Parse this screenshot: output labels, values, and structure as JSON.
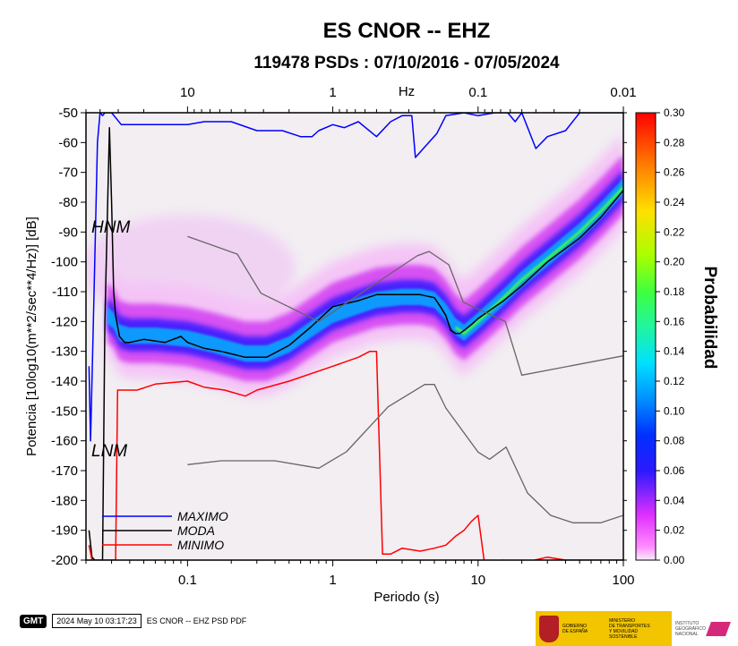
{
  "chart_data": {
    "type": "heatmap",
    "title": "ES CNOR -- EHZ",
    "subtitle": "119478 PSDs : 07/10/2016 - 07/05/2024",
    "xlabel": "Periodo (s)",
    "ylabel": "Potencia [10log10(m**2/sec**4/Hz)] [dB]",
    "top_axis_label": "Hz",
    "x_scale": "log",
    "xlim": [
      0.02,
      100
    ],
    "ylim": [
      -200,
      -50
    ],
    "x_ticks": [
      0.1,
      1,
      10,
      100
    ],
    "x_tick_labels": [
      "0.1",
      "1",
      "10",
      "100"
    ],
    "top_ticks": [
      10,
      1,
      0.1,
      0.01
    ],
    "top_tick_labels": [
      "10",
      "1",
      "0.1",
      "0.01"
    ],
    "y_ticks": [
      -50,
      -60,
      -70,
      -80,
      -90,
      -100,
      -110,
      -120,
      -130,
      -140,
      -150,
      -160,
      -170,
      -180,
      -190,
      -200
    ],
    "y_tick_labels": [
      "-50",
      "-60",
      "-70",
      "-80",
      "-90",
      "-100",
      "-110",
      "-120",
      "-130",
      "-140",
      "-150",
      "-160",
      "-170",
      "-180",
      "-190",
      "-200"
    ],
    "colorbar": {
      "label": "Probabilidad",
      "range": [
        0,
        0.3
      ],
      "ticks": [
        0,
        0.02,
        0.04,
        0.06,
        0.08,
        0.1,
        0.12,
        0.14,
        0.16,
        0.18,
        0.2,
        0.22,
        0.24,
        0.26,
        0.28,
        0.3
      ],
      "tick_labels": [
        "0.00",
        "0.02",
        "0.04",
        "0.06",
        "0.08",
        "0.10",
        "0.12",
        "0.14",
        "0.16",
        "0.18",
        "0.20",
        "0.22",
        "0.24",
        "0.26",
        "0.28",
        "0.30"
      ]
    },
    "annotations": {
      "hnm": "HNM",
      "lnm": "LNM"
    },
    "legend": {
      "placement": "bottom-left",
      "items": [
        {
          "label": "MAXIMO",
          "color": "#0000ff"
        },
        {
          "label": "MODA",
          "color": "#000000"
        },
        {
          "label": "MINIMO",
          "color": "#ff0000"
        }
      ]
    },
    "series": [
      {
        "name": "MAXIMO",
        "color": "#0000ff",
        "x": [
          0.021,
          0.0215,
          0.022,
          0.023,
          0.024,
          0.025,
          0.026,
          0.027,
          0.028,
          0.029,
          0.03,
          0.035,
          0.06,
          0.1,
          0.13,
          0.2,
          0.3,
          0.45,
          0.6,
          0.72,
          0.8,
          1,
          1.2,
          1.5,
          2,
          2.5,
          3,
          3.5,
          3.7,
          4.2,
          5.2,
          6,
          8,
          10,
          13,
          16,
          18,
          20,
          25,
          30,
          40,
          50,
          60,
          70,
          100
        ],
        "y": [
          -135,
          -160,
          -140,
          -100,
          -60,
          -50,
          -51,
          -50,
          -50,
          -50,
          -50,
          -54,
          -54,
          -54,
          -53,
          -53,
          -56,
          -56,
          -58,
          -58,
          -56,
          -54,
          -55,
          -53,
          -58,
          -53,
          -51,
          -51,
          -65,
          -62,
          -57,
          -51,
          -50,
          -51,
          -50,
          -50,
          -53,
          -50,
          -62,
          -58,
          -56,
          -50,
          -50,
          -50,
          -50
        ]
      },
      {
        "name": "MODA",
        "color": "#000000",
        "x": [
          0.021,
          0.022,
          0.023,
          0.025,
          0.026,
          0.027,
          0.029,
          0.03,
          0.031,
          0.032,
          0.034,
          0.037,
          0.04,
          0.05,
          0.07,
          0.09,
          0.1,
          0.13,
          0.17,
          0.25,
          0.35,
          0.5,
          0.7,
          1,
          1.5,
          2,
          3,
          4,
          5,
          5.5,
          6,
          6.5,
          7,
          7.5,
          8,
          9,
          10,
          15,
          20,
          30,
          50,
          70,
          100
        ],
        "y": [
          -190,
          -199,
          -200,
          -200,
          -200,
          -120,
          -55,
          -80,
          -110,
          -118,
          -125,
          -127,
          -127,
          -126,
          -127,
          -125,
          -127,
          -129,
          -130,
          -132,
          -132,
          -128,
          -122,
          -115,
          -113,
          -111,
          -111,
          -111,
          -112,
          -115,
          -118,
          -123,
          -124,
          -124,
          -123,
          -121,
          -119,
          -113,
          -108,
          -100,
          -92,
          -85,
          -76
        ]
      },
      {
        "name": "MINIMO",
        "color": "#ff0000",
        "x": [
          0.021,
          0.022,
          0.023,
          0.025,
          0.026,
          0.027,
          0.029,
          0.031,
          0.032,
          0.033,
          0.045,
          0.06,
          0.1,
          0.13,
          0.18,
          0.25,
          0.3,
          0.5,
          1,
          1.5,
          1.8,
          2,
          2.2,
          2.5,
          3,
          4,
          5,
          6,
          7,
          8,
          9,
          10,
          11,
          12,
          15,
          20,
          30,
          40,
          50,
          70,
          100
        ],
        "y": [
          -195,
          -200,
          -201,
          -201,
          -201,
          -200,
          -200,
          -200,
          -200,
          -143,
          -143,
          -141,
          -140,
          -142,
          -143,
          -145,
          -143,
          -140,
          -135,
          -132,
          -130,
          -130,
          -198,
          -198,
          -196,
          -197,
          -196,
          -195,
          -192,
          -190,
          -187,
          -185,
          -200,
          -201,
          -200,
          -201,
          -199,
          -200,
          -200,
          -200,
          -200
        ]
      },
      {
        "name": "HNM",
        "color": "#666666",
        "x": [
          0.1,
          0.22,
          0.32,
          0.8,
          3.8,
          4.6,
          6.3,
          7.9,
          15.4,
          20,
          100
        ],
        "y": [
          -91.5,
          -97.4,
          -110.5,
          -120,
          -98,
          -96.5,
          -101,
          -113.5,
          -120,
          -138,
          -131.5
        ]
      },
      {
        "name": "LNM",
        "color": "#666666",
        "x": [
          0.1,
          0.17,
          0.4,
          0.8,
          1.24,
          2.4,
          4.3,
          5,
          6,
          10,
          12,
          15.6,
          21.9,
          31.6,
          45,
          70,
          100
        ],
        "y": [
          -168,
          -166.7,
          -166.7,
          -169.2,
          -163.7,
          -148.6,
          -141.1,
          -141.1,
          -149,
          -163.8,
          -166.2,
          -162.1,
          -177.5,
          -185,
          -187.5,
          -187.5,
          -185
        ]
      }
    ],
    "pdf_mode_band": {
      "x": [
        0.028,
        0.031,
        0.034,
        0.04,
        0.06,
        0.1,
        0.15,
        0.25,
        0.35,
        0.5,
        0.7,
        1,
        1.5,
        2,
        3,
        4,
        5,
        6,
        7,
        8,
        10,
        15,
        20,
        30,
        50,
        70,
        100
      ],
      "y": [
        -118,
        -120,
        -124,
        -125,
        -125,
        -126,
        -128,
        -131,
        -131,
        -128,
        -123,
        -118,
        -115,
        -113,
        -112,
        -112,
        -113,
        -117,
        -122,
        -124,
        -120,
        -112,
        -106,
        -99,
        -90,
        -83,
        -75
      ]
    },
    "grid": false
  }
}
